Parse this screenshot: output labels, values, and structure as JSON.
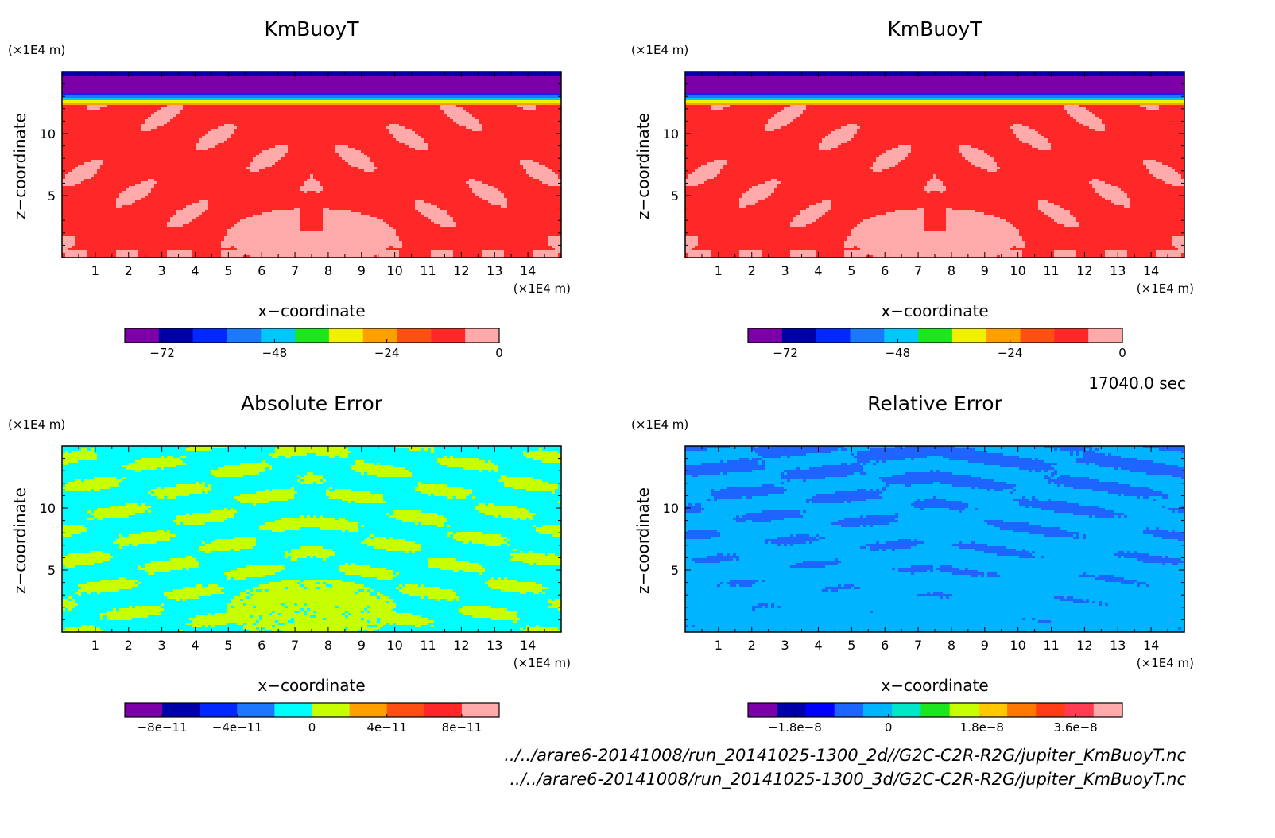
{
  "colors": {
    "purple": "#7b00a8",
    "navy": "#0000a8",
    "blue": "#0028ff",
    "mblue": "#1e78ff",
    "sky": "#00a8ff",
    "cyan": "#00ffff",
    "green": "#1ee61e",
    "lime": "#c8ff00",
    "yellow": "#f0f000",
    "orange": "#ffa000",
    "dorange": "#ff5014",
    "red": "#ff2828",
    "pink": "#ffaaaa"
  },
  "time_label": "17040.0 sec",
  "file_paths": [
    "../../arare6-20141008/run_20141025-1300_2d//G2C-C2R-R2G/jupiter_KmBuoyT.nc",
    "../../arare6-20141008/run_20141025-1300_3d/G2C-C2R-R2G/jupiter_KmBuoyT.nc"
  ],
  "chart_data": [
    {
      "type": "heatmap",
      "title": "KmBuoyT",
      "xlabel": "x−coordinate",
      "ylabel": "z−coordinate",
      "x_unit": "(×1E4 m)",
      "y_unit": "(×1E4 m)",
      "xlim": [
        0,
        15
      ],
      "ylim": [
        0,
        15
      ],
      "x_ticks": [
        1,
        2,
        3,
        4,
        5,
        6,
        7,
        8,
        9,
        10,
        11,
        12,
        13,
        14
      ],
      "y_ticks": [
        5,
        10
      ],
      "field": "kmbuoyt",
      "colorbar": {
        "levels": 11,
        "colors": [
          "#7b00a8",
          "#0000a8",
          "#0028ff",
          "#1e78ff",
          "#00c8ff",
          "#1ee61e",
          "#f0f000",
          "#ffa000",
          "#ff5014",
          "#ff2828",
          "#ffaaaa"
        ],
        "ticks": [
          -72,
          -48,
          -24,
          0
        ],
        "tick_labels": [
          "−72",
          "−48",
          "−24",
          "0"
        ],
        "range": [
          -80,
          0
        ]
      }
    },
    {
      "type": "heatmap",
      "title": "KmBuoyT",
      "xlabel": "x−coordinate",
      "ylabel": "z−coordinate",
      "x_unit": "(×1E4 m)",
      "y_unit": "(×1E4 m)",
      "xlim": [
        0,
        15
      ],
      "ylim": [
        0,
        15
      ],
      "x_ticks": [
        1,
        2,
        3,
        4,
        5,
        6,
        7,
        8,
        9,
        10,
        11,
        12,
        13,
        14
      ],
      "y_ticks": [
        5,
        10
      ],
      "field": "kmbuoyt",
      "colorbar": {
        "levels": 11,
        "colors": [
          "#7b00a8",
          "#0000a8",
          "#0028ff",
          "#1e78ff",
          "#00c8ff",
          "#1ee61e",
          "#f0f000",
          "#ffa000",
          "#ff5014",
          "#ff2828",
          "#ffaaaa"
        ],
        "ticks": [
          -72,
          -48,
          -24,
          0
        ],
        "tick_labels": [
          "−72",
          "−48",
          "−24",
          "0"
        ],
        "range": [
          -80,
          0
        ]
      }
    },
    {
      "type": "heatmap",
      "title": "Absolute Error",
      "xlabel": "x−coordinate",
      "ylabel": "z−coordinate",
      "x_unit": "(×1E4 m)",
      "y_unit": "(×1E4 m)",
      "xlim": [
        0,
        15
      ],
      "ylim": [
        0,
        15
      ],
      "x_ticks": [
        1,
        2,
        3,
        4,
        5,
        6,
        7,
        8,
        9,
        10,
        11,
        12,
        13,
        14
      ],
      "y_ticks": [
        5,
        10
      ],
      "field": "abserr",
      "colorbar": {
        "levels": 10,
        "colors": [
          "#7b00a8",
          "#0000a8",
          "#0028ff",
          "#1e78ff",
          "#00ffff",
          "#c8ff00",
          "#ffa000",
          "#ff5014",
          "#ff2828",
          "#ffaaaa"
        ],
        "ticks": [
          -8e-11,
          -4e-11,
          0,
          4e-11,
          8e-11
        ],
        "tick_labels": [
          "−8e−11",
          "−4e−11",
          "0",
          "4e−11",
          "8e−11"
        ],
        "range": [
          -1e-10,
          1e-10
        ]
      }
    },
    {
      "type": "heatmap",
      "title": "Relative Error",
      "xlabel": "x−coordinate",
      "ylabel": "z−coordinate",
      "x_unit": "(×1E4 m)",
      "y_unit": "(×1E4 m)",
      "xlim": [
        0,
        15
      ],
      "ylim": [
        0,
        15
      ],
      "x_ticks": [
        1,
        2,
        3,
        4,
        5,
        6,
        7,
        8,
        9,
        10,
        11,
        12,
        13,
        14
      ],
      "y_ticks": [
        5,
        10
      ],
      "field": "relerr",
      "colorbar": {
        "levels": 13,
        "colors": [
          "#7b00a8",
          "#0000a8",
          "#0000ff",
          "#1e64ff",
          "#00b4ff",
          "#00e6c8",
          "#1ee61e",
          "#c8ff00",
          "#ffc800",
          "#ff7800",
          "#ff3c14",
          "#ff3c50",
          "#ffaaaa"
        ],
        "ticks": [
          -1.8e-08,
          0,
          1.8e-08,
          3.6e-08
        ],
        "tick_labels": [
          "−1.8e−8",
          "0",
          "1.8e−8",
          "3.6e−8"
        ],
        "range": [
          -2.7e-08,
          4.5e-08
        ]
      }
    }
  ]
}
